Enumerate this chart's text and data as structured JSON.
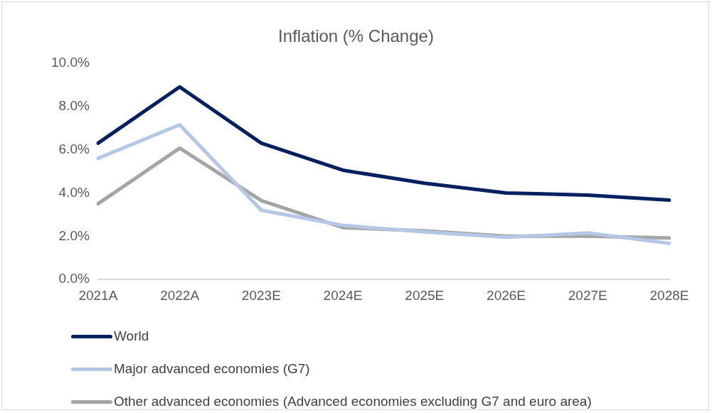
{
  "chart_data": {
    "type": "line",
    "title": "Inflation (% Change)",
    "categories": [
      "2021A",
      "2022A",
      "2023E",
      "2024E",
      "2025E",
      "2026E",
      "2027E",
      "2028E"
    ],
    "series": [
      {
        "name": "World",
        "color": "#002060",
        "values": [
          6.3,
          8.9,
          6.3,
          5.05,
          4.45,
          4.0,
          3.9,
          3.67
        ]
      },
      {
        "name": "Major advanced economies (G7)",
        "color": "#b4c7e7",
        "values": [
          5.6,
          7.15,
          3.2,
          2.5,
          2.2,
          1.95,
          2.15,
          1.67
        ]
      },
      {
        "name": "Other advanced economies (Advanced economies excluding G7 and euro area)",
        "color": "#a5a5a5",
        "values": [
          3.5,
          6.07,
          3.65,
          2.4,
          2.25,
          2.0,
          2.0,
          1.92
        ]
      }
    ],
    "ylim": [
      0,
      10
    ],
    "yticks": [
      {
        "value": 0,
        "label": "0.0%"
      },
      {
        "value": 2,
        "label": "2.0%"
      },
      {
        "value": 4,
        "label": "4.0%"
      },
      {
        "value": 6,
        "label": "6.0%"
      },
      {
        "value": 8,
        "label": "8.0%"
      },
      {
        "value": 10,
        "label": "10.0%"
      }
    ],
    "grid": false,
    "legend": "bottom",
    "marker": "none",
    "line_style": "solid"
  }
}
